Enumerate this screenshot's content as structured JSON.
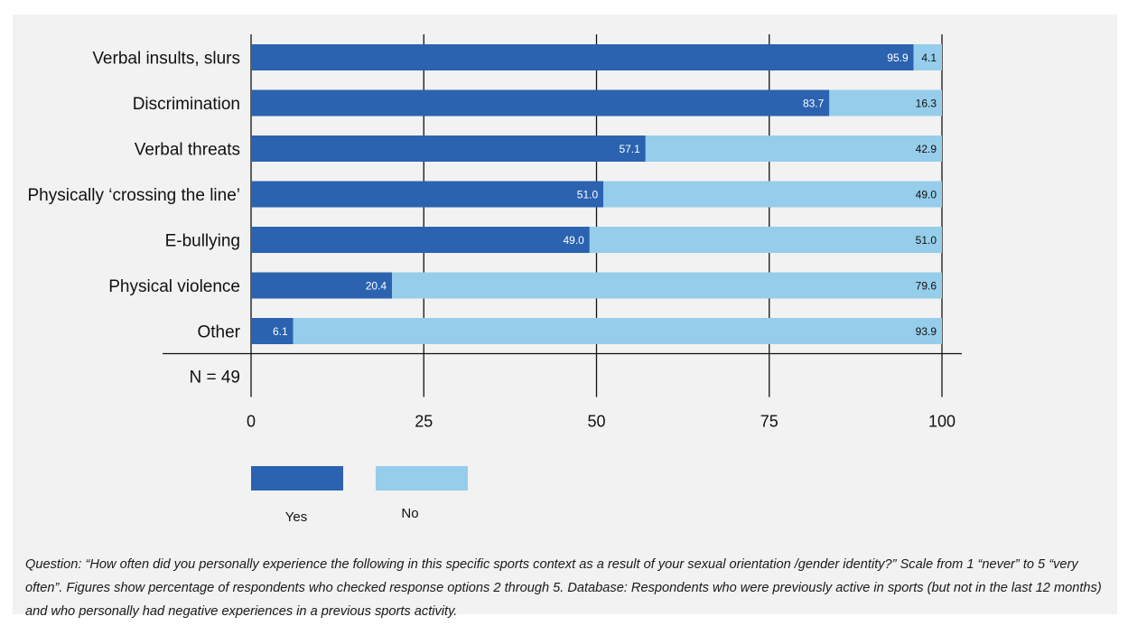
{
  "chart_data": {
    "type": "bar",
    "orientation": "horizontal",
    "stacked": true,
    "categories": [
      "Verbal insults, slurs",
      "Discrimination",
      "Verbal threats",
      "Physically ‘crossing the line’",
      "E-bullying",
      "Physical violence",
      "Other"
    ],
    "series": [
      {
        "name": "Yes",
        "color": "#2b63b0",
        "values": [
          95.9,
          83.7,
          57.1,
          51.0,
          49.0,
          20.4,
          6.1
        ],
        "labels": [
          "95.9",
          "83.7",
          "57.1",
          "51.0",
          "49.0",
          "20.4",
          "6.1"
        ]
      },
      {
        "name": "No",
        "color": "#96cdeb",
        "values": [
          4.1,
          16.3,
          42.9,
          49.0,
          51.0,
          79.6,
          93.9
        ],
        "labels": [
          "4.1",
          "16.3",
          "42.9",
          "49.0",
          "51.0",
          "79.6",
          "93.9"
        ]
      }
    ],
    "xlim": [
      0,
      100
    ],
    "xticks": [
      "0",
      "25",
      "50",
      "75",
      "100"
    ],
    "grid": true,
    "legend": "bottom-left",
    "sample_note": "N = 49"
  },
  "footnote": "Question: “How often did you personally experience the following in this specific sports context as a result of your sexual orientation /gender identity?” Scale from 1 “never” to 5 “very often”. Figures show percentage of respondents who checked response options 2 through 5. Database: Respondents who were previously active in sports (but not in the last 12 months) and who personally had negative experiences in a previous sports activity."
}
